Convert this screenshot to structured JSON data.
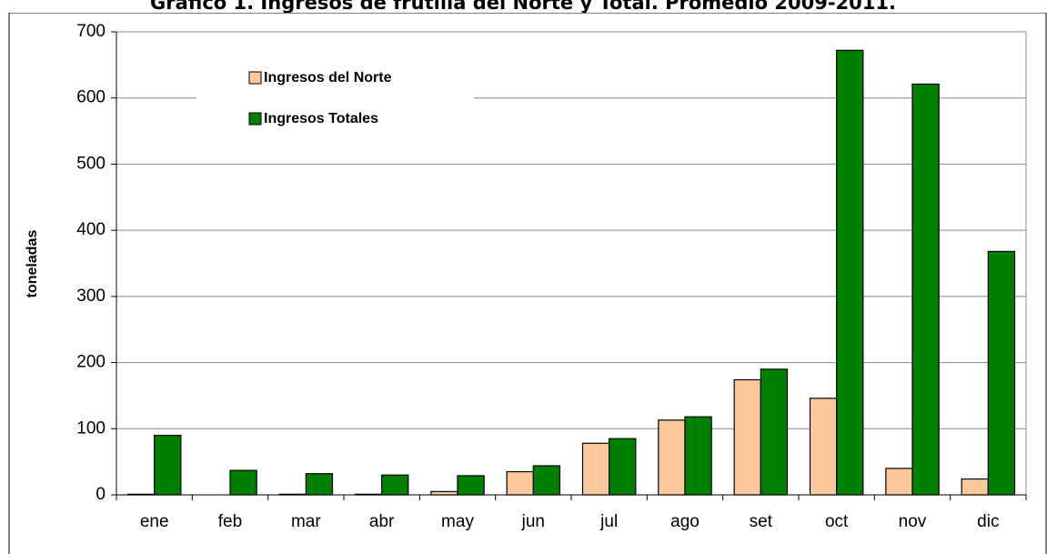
{
  "chart_data": {
    "type": "bar",
    "title": "Gráfico 1. Ingresos de frutilla del Norte y Total. Promedio 2009-2011.",
    "y_label": "toneladas",
    "categories": [
      "ene",
      "feb",
      "mar",
      "abr",
      "may",
      "jun",
      "jul",
      "ago",
      "set",
      "oct",
      "nov",
      "dic"
    ],
    "series": [
      {
        "name": "Ingresos del Norte",
        "color": "#fcc89b",
        "values": [
          1,
          0,
          1,
          1,
          5,
          35,
          78,
          113,
          174,
          146,
          40,
          24
        ]
      },
      {
        "name": "Ingresos Totales",
        "color": "#008000",
        "values": [
          90,
          37,
          32,
          30,
          29,
          44,
          85,
          118,
          190,
          672,
          621,
          368
        ]
      }
    ],
    "ylim": [
      0,
      700
    ],
    "yticks": [
      0,
      100,
      200,
      300,
      400,
      500,
      600,
      700
    ],
    "grid": true,
    "legend": "top-left"
  }
}
